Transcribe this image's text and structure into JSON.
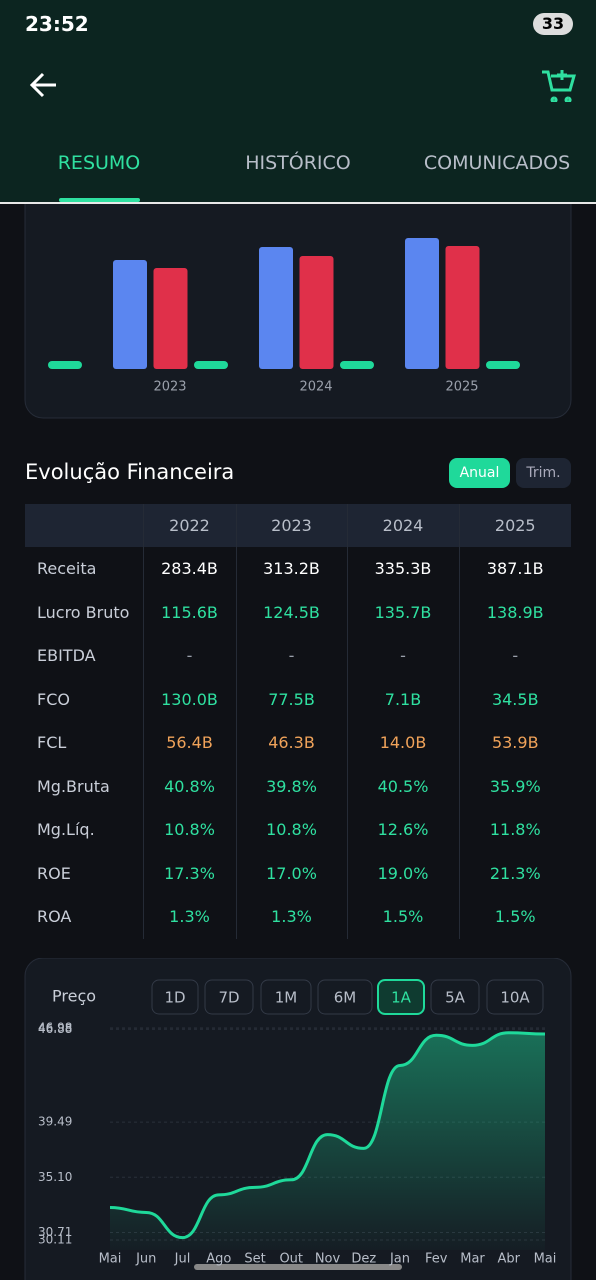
{
  "status_bar": {
    "time": "23:52",
    "battery": "33"
  },
  "tabs": [
    "RESUMO",
    "HISTÓRICO",
    "COMUNICADOS"
  ],
  "bar_chart": {
    "type": "bar",
    "categories": [
      null,
      "2023",
      "2024",
      "2025"
    ],
    "ylim": [
      0,
      140
    ],
    "series": [
      {
        "color": "#5b86f0",
        "values": [
          null,
          109,
          122,
          131
        ]
      },
      {
        "color": "#e0304a",
        "values": [
          null,
          101,
          113,
          123
        ]
      },
      {
        "color": "#1fd99a",
        "values": [
          8,
          8,
          8,
          8
        ]
      }
    ]
  },
  "financials": {
    "title": "Evolução Financeira",
    "toggles": [
      "Anual",
      "Trim."
    ],
    "columns": [
      "2022",
      "2023",
      "2024",
      "2025"
    ],
    "rows": [
      {
        "label": "Receita",
        "values": [
          "283.4B",
          "313.2B",
          "335.3B",
          "387.1B"
        ]
      },
      {
        "label": "Lucro Bruto",
        "values": [
          "115.6B",
          "124.5B",
          "135.7B",
          "138.9B"
        ]
      },
      {
        "label": "EBITDA",
        "values": [
          "-",
          "-",
          "-",
          "-"
        ]
      },
      {
        "label": "FCO",
        "values": [
          "130.0B",
          "77.5B",
          "7.1B",
          "34.5B"
        ]
      },
      {
        "label": "FCL",
        "values": [
          "56.4B",
          "46.3B",
          "14.0B",
          "53.9B"
        ]
      },
      {
        "label": "Mg.Bruta",
        "values": [
          "40.8%",
          "39.8%",
          "40.5%",
          "35.9%"
        ]
      },
      {
        "label": "Mg.Líq.",
        "values": [
          "10.8%",
          "10.8%",
          "12.6%",
          "11.8%"
        ]
      },
      {
        "label": "ROE",
        "values": [
          "17.3%",
          "17.0%",
          "19.0%",
          "21.3%"
        ]
      },
      {
        "label": "ROA",
        "values": [
          "1.3%",
          "1.3%",
          "1.5%",
          "1.5%"
        ]
      }
    ]
  },
  "price_chart": {
    "type": "line",
    "label": "Preço",
    "periods": [
      "1D",
      "7D",
      "1M",
      "6M",
      "1A",
      "5A",
      "10A"
    ],
    "categories": [
      "Mai",
      "Jun",
      "Jul",
      "Ago",
      "Set",
      "Out",
      "Nov",
      "Dez",
      "Jan",
      "Fev",
      "Mar",
      "Abr",
      "Mai"
    ],
    "values": [
      32.7,
      32.3,
      30.3,
      33.7,
      34.3,
      34.9,
      38.5,
      37.4,
      44.0,
      46.4,
      45.6,
      46.6,
      46.5
    ],
    "color": "#1fd99a",
    "ylim": [
      30.11,
      46.98
    ],
    "yticks": [
      46.98,
      46.88,
      39.49,
      {
        "value": 35.1,
        "label": "35.10"
      },
      30.71,
      30.11
    ],
    "grid": true
  }
}
